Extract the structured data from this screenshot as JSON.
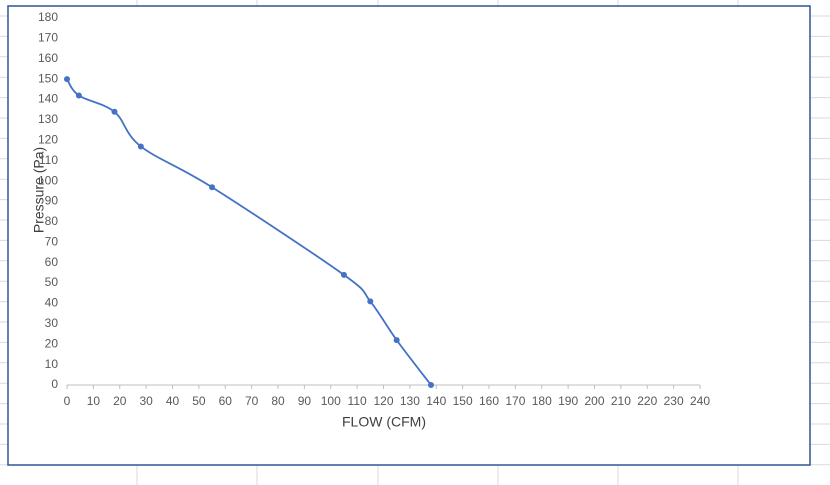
{
  "chart_data": {
    "type": "line",
    "x_label": "FLOW (CFM)",
    "y_label": "Pressure (Pa)",
    "series": [
      {
        "name": "Pressure",
        "color": "#4472c4",
        "x": [
          0,
          4.5,
          18,
          28,
          55,
          105,
          115,
          125,
          138
        ],
        "values": [
          150,
          142,
          134,
          117,
          97,
          54,
          41,
          22,
          0
        ]
      }
    ],
    "xlim": [
      0,
      240
    ],
    "xticks": [
      0,
      10,
      20,
      30,
      40,
      50,
      60,
      70,
      80,
      90,
      100,
      110,
      120,
      130,
      140,
      150,
      160,
      170,
      180,
      190,
      200,
      210,
      220,
      230,
      240
    ],
    "ylim": [
      0,
      180
    ],
    "yticks": [
      0,
      10,
      20,
      30,
      40,
      50,
      60,
      70,
      80,
      90,
      100,
      110,
      120,
      130,
      140,
      150,
      160,
      170,
      180
    ],
    "smooth": true,
    "markers": true
  }
}
